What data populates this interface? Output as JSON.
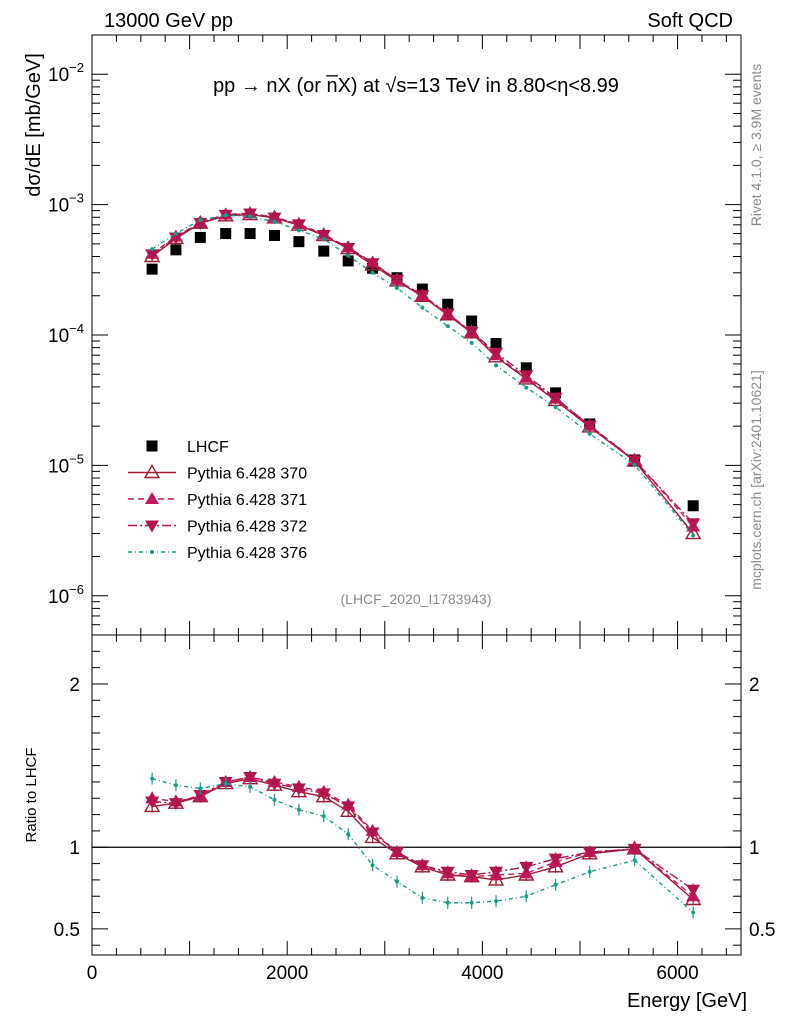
{
  "header": {
    "energy_label": "13000 GeV pp",
    "category": "Soft QCD",
    "title": "pp → nX (or n̅X) at √s=13 TeV in 8.80<η<8.99",
    "side_rivet": "Rivet 4.1.0, ≥ 3.9M events",
    "side_mcplots": "mcplots.cern.ch [arXiv:2401.10621]",
    "analysis_id": "(LHCF_2020_I1783943)"
  },
  "colors": {
    "data": "#000000",
    "p370": "#9e1b32",
    "p371": "#c0185c",
    "p372": "#b0164e",
    "p376": "#1a9a8a"
  },
  "chart_data": [
    {
      "type": "scatter",
      "panel": "main",
      "yscale": "log",
      "ylabel": "dσ/dE [mb/GeV]",
      "xlim": [
        0,
        6650
      ],
      "ylim": [
        5e-07,
        0.02
      ],
      "y_ticks": [
        {
          "value": 1e-06,
          "base": "10",
          "exp": "−6"
        },
        {
          "value": 1e-05,
          "base": "10",
          "exp": "−5"
        },
        {
          "value": 0.0001,
          "base": "10",
          "exp": "−4"
        },
        {
          "value": 0.001,
          "base": "10",
          "exp": "−3"
        },
        {
          "value": 0.01,
          "base": "10",
          "exp": "−2"
        }
      ],
      "x": [
        616,
        860,
        1110,
        1370,
        1620,
        1870,
        2120,
        2375,
        2625,
        2875,
        3125,
        3385,
        3645,
        3890,
        4140,
        4450,
        4750,
        5100,
        5560,
        6160
      ],
      "series": [
        {
          "name": "LHCF",
          "style": "data",
          "values": [
            0.00032,
            0.00045,
            0.00056,
            0.0006,
            0.0006,
            0.00058,
            0.00052,
            0.00044,
            0.00037,
            0.000325,
            0.000275,
            0.000225,
            0.000172,
            0.000128,
            8.6e-05,
            5.6e-05,
            3.6e-05,
            2.08e-05,
            1.1e-05,
            4.9e-06
          ]
        },
        {
          "name": "Pythia 6.428 370",
          "style": "p370",
          "values": [
            0.0004,
            0.00055,
            0.00072,
            0.00082,
            0.00084,
            0.00079,
            0.000695,
            0.00058,
            0.00046,
            0.000345,
            0.00026,
            0.000198,
            0.000143,
            0.000104,
            6.8e-05,
            4.6e-05,
            3.15e-05,
            1.97e-05,
            1.08e-05,
            3e-06
          ]
        },
        {
          "name": "Pythia 6.428 371",
          "style": "p371",
          "values": [
            0.00042,
            0.00057,
            0.00073,
            0.00084,
            0.00086,
            0.0008,
            0.00071,
            0.00059,
            0.00047,
            0.00036,
            0.000265,
            0.0002,
            0.000145,
            0.000105,
            7e-05,
            4.7e-05,
            3.25e-05,
            2.02e-05,
            1.1e-05,
            3.4e-06
          ]
        },
        {
          "name": "Pythia 6.428 372",
          "style": "p372",
          "values": [
            0.000415,
            0.00056,
            0.000725,
            0.000835,
            0.000855,
            0.000795,
            0.000705,
            0.000585,
            0.000465,
            0.000355,
            0.000265,
            0.000202,
            0.000146,
            0.000106,
            7.3e-05,
            4.9e-05,
            3.3e-05,
            2.02e-05,
            1.09e-05,
            3.6e-06
          ]
        },
        {
          "name": "Pythia 6.428 376",
          "style": "p376",
          "values": [
            0.000455,
            0.0006,
            0.00076,
            0.00083,
            0.00081,
            0.00074,
            0.000635,
            0.000545,
            0.000405,
            0.0003,
            0.00023,
            0.000162,
            0.000117,
            8.7e-05,
            5.85e-05,
            3.95e-05,
            2.8e-05,
            1.75e-05,
            1.01e-05,
            2.9e-06
          ]
        }
      ]
    },
    {
      "type": "scatter",
      "panel": "ratio",
      "ylabel": "Ratio to LHCF",
      "xlabel": "Energy [GeV]",
      "xlim": [
        0,
        6650
      ],
      "ylim": [
        0.34,
        2.3
      ],
      "y_tick_labels": [
        {
          "value": 0.5,
          "label": "0.5"
        },
        {
          "value": 1,
          "label": "1"
        },
        {
          "value": 2,
          "label": "2"
        }
      ],
      "x_tick_labels": [
        {
          "value": 0,
          "label": "0"
        },
        {
          "value": 2000,
          "label": "2000"
        },
        {
          "value": 4000,
          "label": "4000"
        },
        {
          "value": 6000,
          "label": "6000"
        }
      ],
      "x": [
        616,
        860,
        1110,
        1370,
        1620,
        1870,
        2120,
        2375,
        2625,
        2875,
        3125,
        3385,
        3645,
        3890,
        4140,
        4450,
        4750,
        5100,
        5560,
        6160
      ],
      "series": [
        {
          "name": "Pythia 6.428 370",
          "style": "p370",
          "values": [
            1.25,
            1.27,
            1.31,
            1.39,
            1.42,
            1.38,
            1.34,
            1.31,
            1.22,
            1.06,
            0.96,
            0.88,
            0.83,
            0.82,
            0.8,
            0.83,
            0.88,
            0.96,
            0.99,
            0.68
          ]
        },
        {
          "name": "Pythia 6.428 371",
          "style": "p371",
          "values": [
            1.3,
            1.28,
            1.31,
            1.4,
            1.43,
            1.4,
            1.37,
            1.34,
            1.26,
            1.1,
            0.97,
            0.89,
            0.84,
            0.82,
            0.83,
            0.84,
            0.91,
            0.97,
            0.99,
            0.7
          ]
        },
        {
          "name": "Pythia 6.428 372",
          "style": "p372",
          "values": [
            1.28,
            1.27,
            1.32,
            1.4,
            1.43,
            1.39,
            1.36,
            1.33,
            1.25,
            1.09,
            0.97,
            0.89,
            0.85,
            0.83,
            0.85,
            0.88,
            0.93,
            0.97,
            0.99,
            0.74
          ]
        },
        {
          "name": "Pythia 6.428 376",
          "style": "p376",
          "values": [
            1.42,
            1.38,
            1.36,
            1.39,
            1.37,
            1.29,
            1.23,
            1.19,
            1.08,
            0.89,
            0.79,
            0.69,
            0.66,
            0.66,
            0.67,
            0.7,
            0.77,
            0.85,
            0.92,
            0.6
          ]
        }
      ]
    }
  ],
  "legend": [
    {
      "label": "LHCF",
      "style": "data"
    },
    {
      "label": "Pythia 6.428 370",
      "style": "p370"
    },
    {
      "label": "Pythia 6.428 371",
      "style": "p371"
    },
    {
      "label": "Pythia 6.428 372",
      "style": "p372"
    },
    {
      "label": "Pythia 6.428 376",
      "style": "p376"
    }
  ]
}
